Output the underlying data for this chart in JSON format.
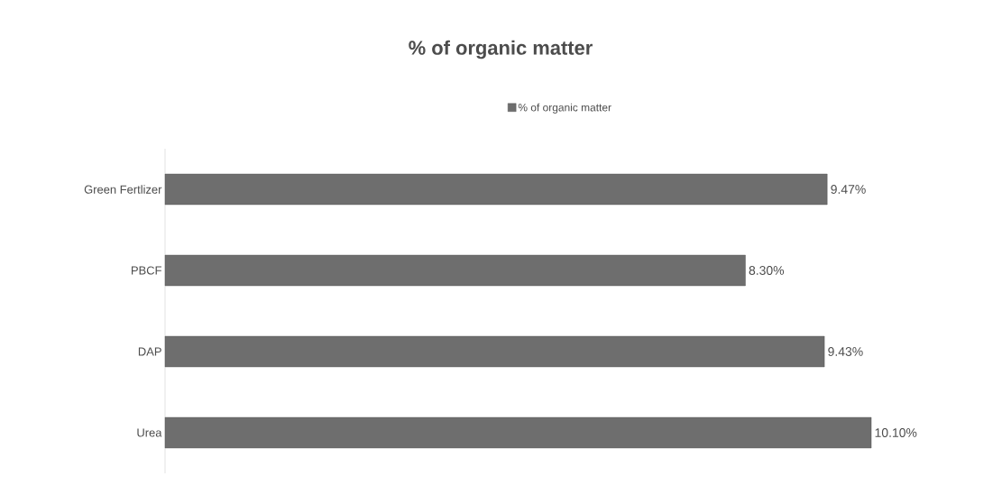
{
  "chart_data": {
    "type": "bar",
    "orientation": "horizontal",
    "title": "% of organic matter",
    "categories": [
      "Green Fertlizer",
      "PBCF",
      "DAP",
      "Urea"
    ],
    "series": [
      {
        "name": "% of organic matter",
        "color": "#6e6e6e",
        "values": [
          9.47,
          8.3,
          9.43,
          10.1
        ],
        "value_labels": [
          "9.47%",
          "8.30%",
          "9.43%",
          "10.10%"
        ]
      }
    ],
    "tick_labels": "y",
    "grid": false,
    "legend": "top"
  }
}
